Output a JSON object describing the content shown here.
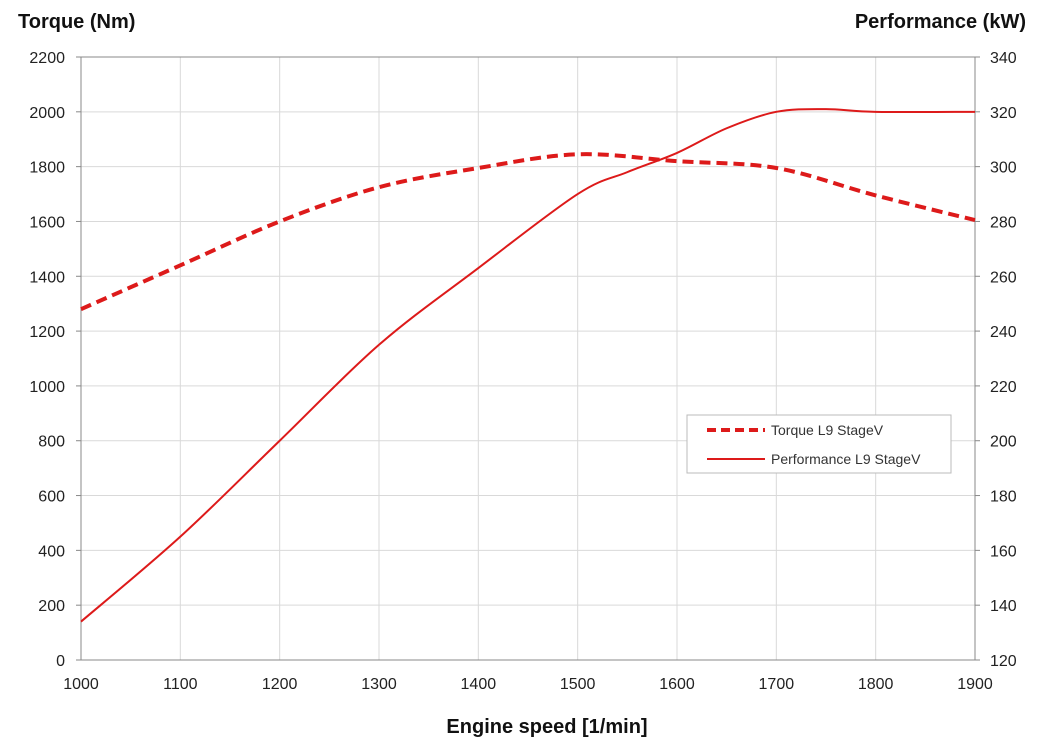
{
  "chart_data": {
    "type": "line",
    "title": "",
    "xlabel": "Engine speed [1/min]",
    "ylabel_left": "Torque (Nm)",
    "ylabel_right": "Performance (kW)",
    "xlim": [
      1000,
      1900
    ],
    "ylim_left": [
      0,
      2200
    ],
    "ylim_right": [
      120,
      340
    ],
    "x_ticks": [
      "1000",
      "1100",
      "1200",
      "1300",
      "1400",
      "1500",
      "1600",
      "1700",
      "1800",
      "1900"
    ],
    "y_ticks_left": [
      "0",
      "200",
      "400",
      "600",
      "800",
      "1000",
      "1200",
      "1400",
      "1600",
      "1800",
      "2000",
      "2200"
    ],
    "y_ticks_right": [
      "120",
      "140",
      "160",
      "180",
      "200",
      "220",
      "240",
      "260",
      "280",
      "300",
      "320",
      "340"
    ],
    "grid": true,
    "legend_position": "right-middle",
    "series": [
      {
        "name": "Torque L9 StageV",
        "axis": "left",
        "style": "dashed",
        "color": "#dd1a1a",
        "x": [
          1000,
          1100,
          1200,
          1300,
          1400,
          1500,
          1600,
          1700,
          1800,
          1900
        ],
        "y": [
          1280,
          1440,
          1600,
          1725,
          1795,
          1845,
          1820,
          1795,
          1695,
          1605
        ]
      },
      {
        "name": "Performance L9 StageV",
        "axis": "right",
        "style": "solid",
        "color": "#dd1a1a",
        "x": [
          1000,
          1100,
          1200,
          1300,
          1400,
          1500,
          1550,
          1600,
          1650,
          1700,
          1750,
          1800,
          1900
        ],
        "y": [
          134,
          165,
          200,
          235,
          263,
          290,
          298,
          305,
          314,
          320,
          321,
          320,
          320
        ]
      }
    ]
  }
}
